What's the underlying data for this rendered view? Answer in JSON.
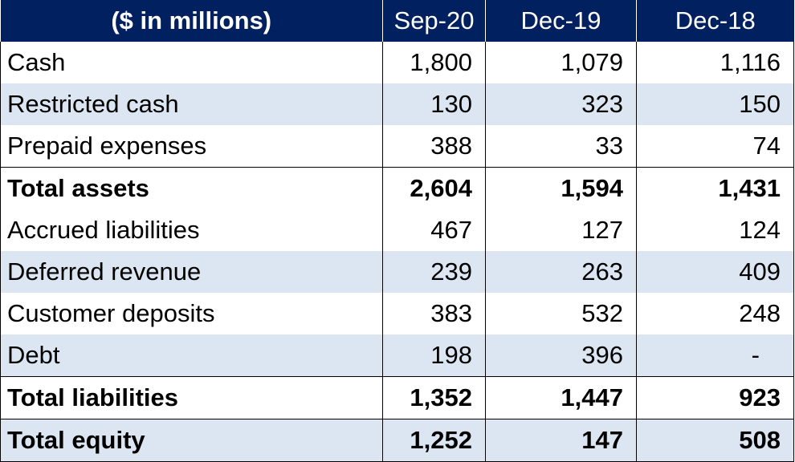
{
  "chart_data": {
    "type": "table",
    "columns": [
      "($ in millions)",
      "Sep-20",
      "Dec-19",
      "Dec-18"
    ],
    "rows": [
      {
        "label": "Cash",
        "values": [
          "1,800",
          "1,079",
          "1,116"
        ],
        "bold": false,
        "band": false
      },
      {
        "label": "Restricted cash",
        "values": [
          "130",
          "323",
          "150"
        ],
        "bold": false,
        "band": true
      },
      {
        "label": "Prepaid expenses",
        "values": [
          "388",
          "33",
          "74"
        ],
        "bold": false,
        "band": false
      },
      {
        "label": "Total assets",
        "values": [
          "2,604",
          "1,594",
          "1,431"
        ],
        "bold": true,
        "band": false
      },
      {
        "label": "Accrued liabilities",
        "values": [
          "467",
          "127",
          "124"
        ],
        "bold": false,
        "band": false
      },
      {
        "label": "Deferred revenue",
        "values": [
          "239",
          "263",
          "409"
        ],
        "bold": false,
        "band": true
      },
      {
        "label": "Customer deposits",
        "values": [
          "383",
          "532",
          "248"
        ],
        "bold": false,
        "band": false
      },
      {
        "label": "Debt",
        "values": [
          "198",
          "396",
          "-"
        ],
        "bold": false,
        "band": true
      },
      {
        "label": "Total liabilities",
        "values": [
          "1,352",
          "1,447",
          "923"
        ],
        "bold": true,
        "band": false
      },
      {
        "label": "Total equity",
        "values": [
          "1,252",
          "147",
          "508"
        ],
        "bold": true,
        "band": true
      }
    ],
    "colors": {
      "header_background": "#002060",
      "header_text": "#ffffff",
      "band_background": "#dce6f2"
    }
  }
}
